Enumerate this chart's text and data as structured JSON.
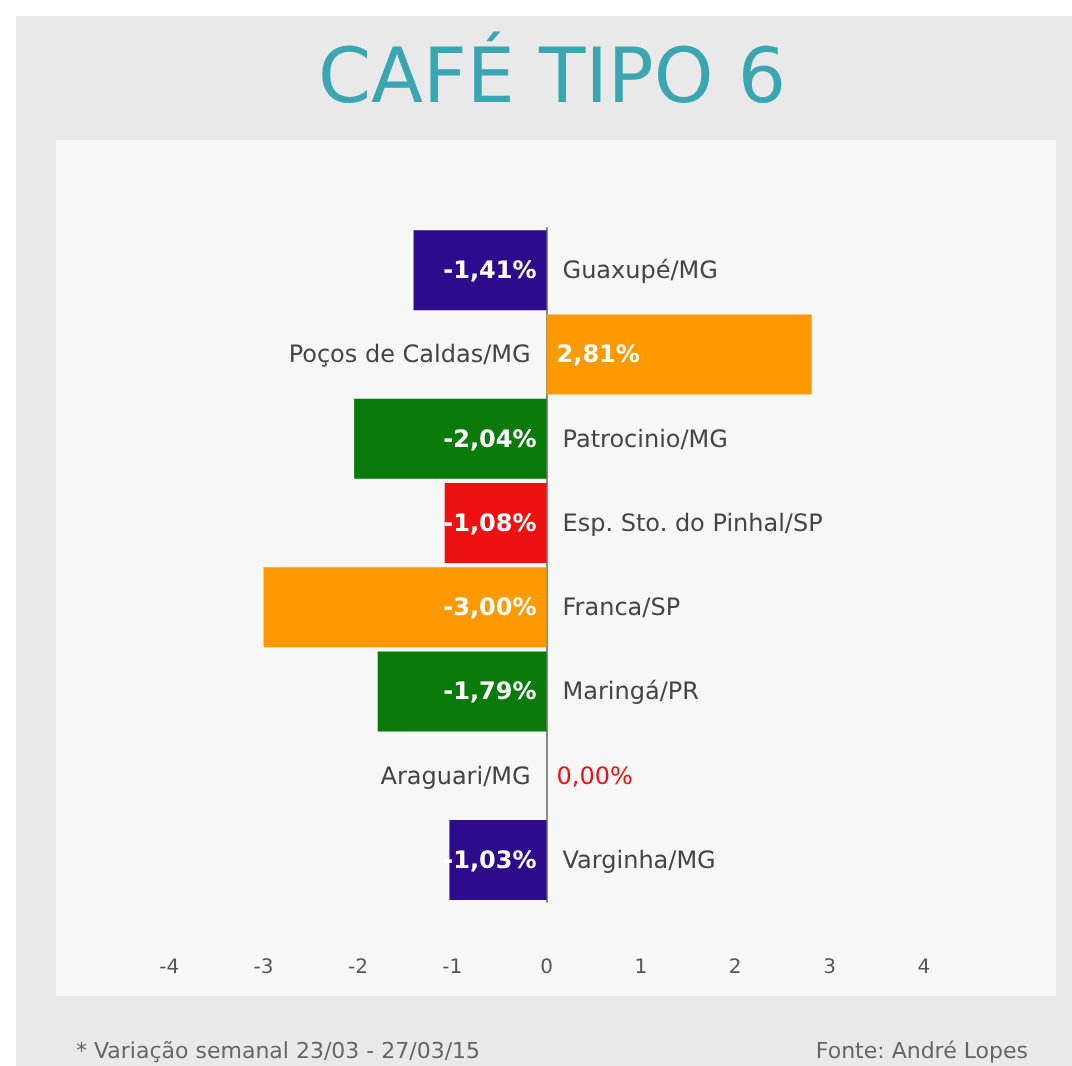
{
  "chart_data": {
    "type": "bar",
    "orientation": "horizontal",
    "title": "CAFÉ TIPO 6",
    "categories": [
      "Guaxupé/MG",
      "Poços de Caldas/MG",
      "Patrocinio/MG",
      "Esp. Sto. do Pinhal/SP",
      "Franca/SP",
      "Maringá/PR",
      "Araguari/MG",
      "Varginha/MG"
    ],
    "values": [
      -1.41,
      2.81,
      -2.04,
      -1.08,
      -3.0,
      -1.79,
      0.0,
      -1.03
    ],
    "colors": [
      "#2e0a8c",
      "#ff9900",
      "#0a7a0a",
      "#ee1111",
      "#ff9900",
      "#0a7a0a",
      "#ee1111",
      "#2e0a8c"
    ],
    "value_labels": [
      "-1,41%",
      "2,81%",
      "-2,04%",
      "-1,08%",
      "-3,00%",
      "-1,79%",
      "0,00%",
      "-1,03%"
    ],
    "xlim": [
      -5.2,
      5.4
    ],
    "xticks": [
      -4,
      -3,
      -2,
      -1,
      0,
      1,
      2,
      3,
      4
    ],
    "grid": false,
    "annotations": [
      "* Variação semanal 23/03 - 27/03/15",
      "Fonte: André Lopes"
    ]
  }
}
